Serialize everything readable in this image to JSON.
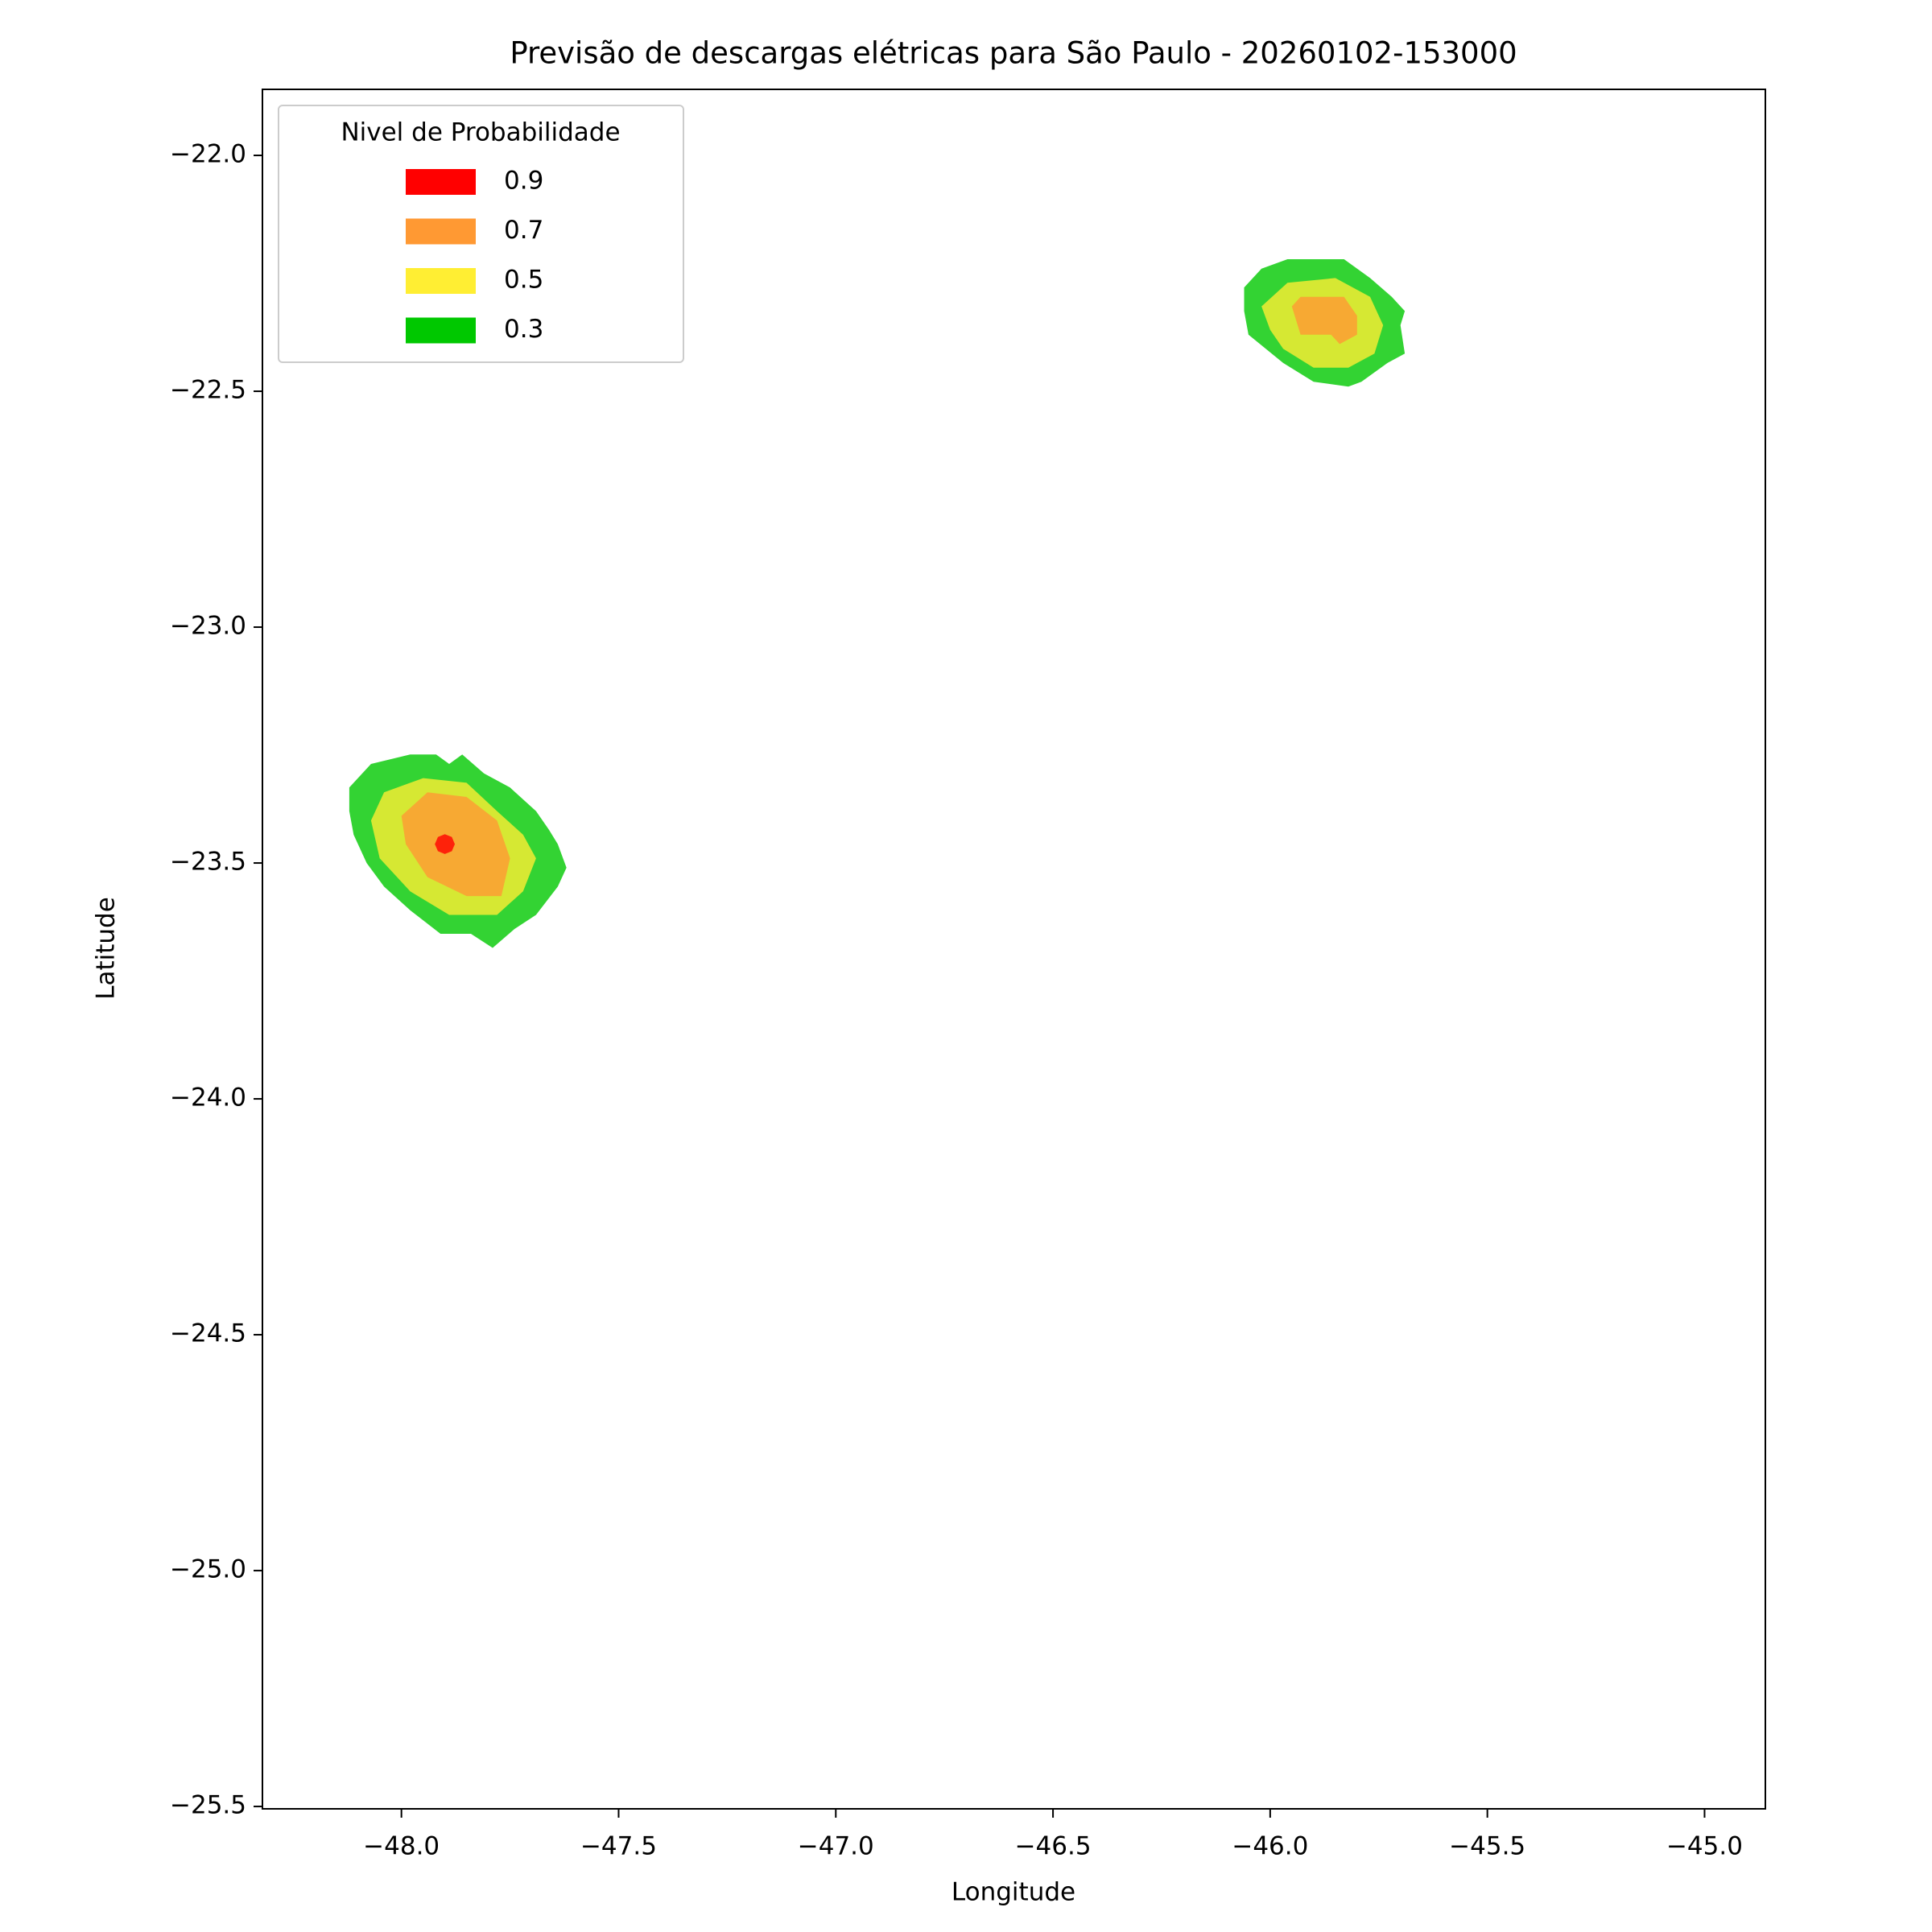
{
  "chart_data": {
    "type": "contour",
    "title": "Previsão de descargas elétricas para São Paulo - 20260102-153000",
    "xlabel": "Longitude",
    "ylabel": "Latitude",
    "xlim": [
      -48.32,
      -44.86
    ],
    "ylim": [
      -25.505,
      -21.86
    ],
    "xticks": [
      {
        "value": -48,
        "label": "−48.0"
      },
      {
        "value": -47.5,
        "label": "−47.5"
      },
      {
        "value": -47,
        "label": "−47.0"
      },
      {
        "value": -46.5,
        "label": "−46.5"
      },
      {
        "value": -46,
        "label": "−46.0"
      },
      {
        "value": -45.5,
        "label": "−45.5"
      },
      {
        "value": -45,
        "label": "−45.0"
      }
    ],
    "yticks": [
      {
        "value": -22,
        "label": "−22.0"
      },
      {
        "value": -22.5,
        "label": "−22.5"
      },
      {
        "value": -23,
        "label": "−23.0"
      },
      {
        "value": -23.5,
        "label": "−23.5"
      },
      {
        "value": -24,
        "label": "−24.0"
      },
      {
        "value": -24.5,
        "label": "−24.5"
      },
      {
        "value": -25,
        "label": "−25.0"
      },
      {
        "value": -25.5,
        "label": "−25.5"
      }
    ],
    "legend_title": "Nivel de Probabilidade",
    "legend_position": "upper left",
    "series": [
      {
        "name": "0.9",
        "color": "#ff0000",
        "regions": [
          {
            "x": [
              -47.877,
              -47.884,
              -47.9,
              -47.916,
              -47.923,
              -47.916,
              -47.9,
              -47.884
            ],
            "y": [
              -23.46,
              -23.445,
              -23.439,
              -23.445,
              -23.46,
              -23.475,
              -23.481,
              -23.475
            ]
          }
        ]
      },
      {
        "name": "0.7",
        "color": "#ff9933",
        "regions": [
          {
            "x": [
              -48.0,
              -47.94,
              -47.85,
              -47.78,
              -47.75,
              -47.77,
              -47.85,
              -47.94,
              -47.99
            ],
            "y": [
              -23.4,
              -23.35,
              -23.36,
              -23.41,
              -23.49,
              -23.57,
              -23.57,
              -23.53,
              -23.46
            ]
          },
          {
            "x": [
              -45.95,
              -45.93,
              -45.83,
              -45.8,
              -45.8,
              -45.84,
              -45.86,
              -45.93
            ],
            "y": [
              -22.32,
              -22.3,
              -22.3,
              -22.34,
              -22.38,
              -22.4,
              -22.38,
              -22.38
            ]
          }
        ]
      },
      {
        "name": "0.5",
        "color": "#ffee33",
        "regions": [
          {
            "x": [
              -48.04,
              -47.95,
              -47.85,
              -47.78,
              -47.72,
              -47.69,
              -47.72,
              -47.78,
              -47.89,
              -47.98,
              -48.05,
              -48.07
            ],
            "y": [
              -23.35,
              -23.32,
              -23.33,
              -23.39,
              -23.44,
              -23.49,
              -23.56,
              -23.61,
              -23.61,
              -23.56,
              -23.49,
              -23.41
            ]
          },
          {
            "x": [
              -46.02,
              -45.96,
              -45.85,
              -45.77,
              -45.74,
              -45.76,
              -45.82,
              -45.9,
              -45.97,
              -46.0
            ],
            "y": [
              -22.32,
              -22.27,
              -22.26,
              -22.3,
              -22.36,
              -22.42,
              -22.45,
              -22.45,
              -22.41,
              -22.37
            ]
          }
        ]
      },
      {
        "name": "0.3",
        "color": "#00c800",
        "regions": [
          {
            "x": [
              -48.12,
              -48.07,
              -47.98,
              -47.92,
              -47.89,
              -47.86,
              -47.81,
              -47.75,
              -47.69,
              -47.66,
              -47.64,
              -47.62,
              -47.64,
              -47.69,
              -47.74,
              -47.79,
              -47.84,
              -47.91,
              -47.98,
              -48.04,
              -48.08,
              -48.11,
              -48.12
            ],
            "y": [
              -23.34,
              -23.29,
              -23.27,
              -23.27,
              -23.29,
              -23.27,
              -23.31,
              -23.34,
              -23.39,
              -23.43,
              -23.46,
              -23.51,
              -23.55,
              -23.61,
              -23.64,
              -23.68,
              -23.65,
              -23.65,
              -23.6,
              -23.55,
              -23.5,
              -23.44,
              -23.39
            ]
          },
          {
            "x": [
              -46.06,
              -46.02,
              -45.96,
              -45.83,
              -45.77,
              -45.72,
              -45.69,
              -45.7,
              -45.69,
              -45.73,
              -45.79,
              -45.82,
              -45.9,
              -45.97,
              -46.05,
              -46.06
            ],
            "y": [
              -22.28,
              -22.24,
              -22.22,
              -22.22,
              -22.26,
              -22.3,
              -22.33,
              -22.36,
              -22.42,
              -22.44,
              -22.48,
              -22.49,
              -22.48,
              -22.44,
              -22.38,
              -22.33
            ]
          }
        ]
      }
    ]
  }
}
